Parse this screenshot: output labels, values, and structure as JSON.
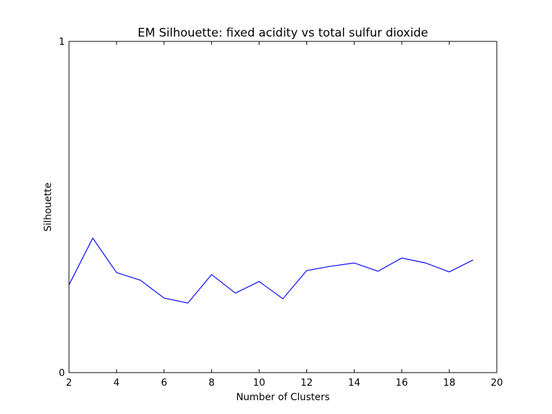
{
  "chart_data": {
    "type": "line",
    "title": "EM Silhouette: fixed acidity vs total sulfur dioxide",
    "x_label": "Number of Clusters",
    "y_label": "Silhouette",
    "x": [
      2,
      3,
      4,
      5,
      6,
      7,
      8,
      9,
      10,
      11,
      12,
      13,
      14,
      15,
      16,
      17,
      18,
      19
    ],
    "series": [
      {
        "name": "Silhouette",
        "color": "#0000ff",
        "values": [
          0.265,
          0.406,
          0.302,
          0.279,
          0.225,
          0.21,
          0.296,
          0.24,
          0.275,
          0.223,
          0.308,
          0.321,
          0.331,
          0.306,
          0.346,
          0.331,
          0.304,
          0.34
        ]
      }
    ],
    "xlim": [
      2,
      20
    ],
    "xticks": [
      2,
      4,
      6,
      8,
      10,
      12,
      14,
      16,
      18,
      20
    ],
    "ylim": [
      0,
      1
    ],
    "yticks": [
      0,
      1
    ],
    "grid": false
  }
}
